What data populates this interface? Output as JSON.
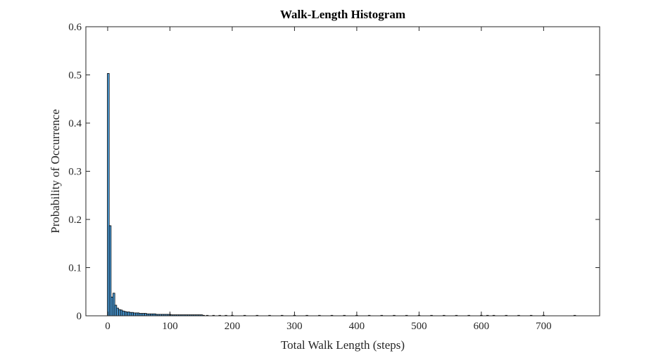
{
  "colors": {
    "bar_fill": "#4d9fdc",
    "bar_edge": "#000000",
    "axis": "#262626",
    "background": "#ffffff"
  },
  "chart_data": {
    "type": "bar",
    "title": "Walk-Length Histogram",
    "xlabel": "Total Walk Length (steps)",
    "ylabel": "Probability of Occurrence",
    "xlim": [
      -35,
      790
    ],
    "ylim": [
      0,
      0.6
    ],
    "xticks": [
      0,
      100,
      200,
      300,
      400,
      500,
      600,
      700
    ],
    "yticks": [
      0,
      0.1,
      0.2,
      0.3,
      0.4,
      0.5,
      0.6
    ],
    "xtick_labels": [
      "0",
      "100",
      "200",
      "300",
      "400",
      "500",
      "600",
      "700"
    ],
    "ytick_labels": [
      "0",
      "0.1",
      "0.2",
      "0.3",
      "0.4",
      "0.5",
      "0.6"
    ],
    "grid": false,
    "legend": false,
    "bin_width": 3,
    "bins": {
      "x": [
        1,
        4,
        7,
        10,
        13,
        16,
        19,
        22,
        25,
        28,
        31,
        34,
        37,
        40,
        43,
        46,
        49,
        52,
        55,
        58,
        61,
        64,
        67,
        70,
        73,
        76,
        79,
        82,
        85,
        88,
        91,
        94,
        97,
        100,
        103,
        106,
        109,
        112,
        115,
        118,
        121,
        124,
        127,
        130,
        133,
        136,
        139,
        142,
        145,
        148,
        151,
        154,
        160,
        170,
        180,
        190,
        200,
        220,
        240,
        260,
        280,
        300,
        320,
        340,
        360,
        380,
        400,
        420,
        440,
        460,
        480,
        500,
        520,
        540,
        560,
        580,
        600,
        610,
        620,
        640,
        660,
        680,
        700,
        750
      ],
      "y": [
        0.503,
        0.187,
        0.039,
        0.047,
        0.022,
        0.016,
        0.013,
        0.012,
        0.01,
        0.009,
        0.008,
        0.008,
        0.007,
        0.007,
        0.006,
        0.006,
        0.006,
        0.005,
        0.005,
        0.005,
        0.005,
        0.004,
        0.004,
        0.004,
        0.004,
        0.004,
        0.003,
        0.003,
        0.003,
        0.003,
        0.003,
        0.003,
        0.003,
        0.003,
        0.002,
        0.002,
        0.002,
        0.002,
        0.002,
        0.002,
        0.002,
        0.002,
        0.002,
        0.002,
        0.002,
        0.002,
        0.002,
        0.002,
        0.002,
        0.002,
        0.002,
        0.001,
        0.001,
        0.001,
        0.001,
        0.001,
        0.001,
        0.001,
        0.001,
        0.001,
        0.001,
        0.001,
        0.001,
        0.001,
        0.001,
        0.001,
        0.001,
        0.001,
        0.001,
        0.001,
        0.001,
        0.001,
        0.001,
        0.001,
        0.001,
        0.001,
        0.001,
        0.001,
        0.001,
        0.001,
        0.001,
        0.001,
        0.001,
        0.001
      ]
    }
  }
}
